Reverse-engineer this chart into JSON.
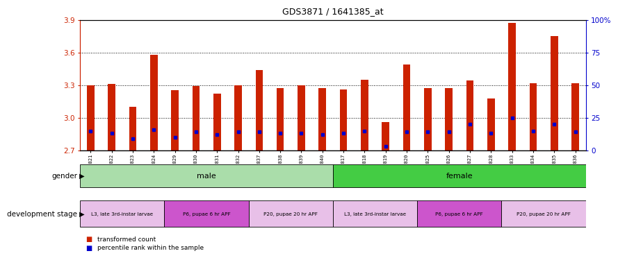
{
  "title": "GDS3871 / 1641385_at",
  "samples": [
    "GSM572821",
    "GSM572822",
    "GSM572823",
    "GSM572824",
    "GSM572829",
    "GSM572830",
    "GSM572831",
    "GSM572832",
    "GSM572837",
    "GSM572838",
    "GSM572839",
    "GSM572840",
    "GSM572817",
    "GSM572818",
    "GSM572819",
    "GSM572820",
    "GSM572825",
    "GSM572826",
    "GSM572827",
    "GSM572828",
    "GSM572833",
    "GSM572834",
    "GSM572835",
    "GSM572836"
  ],
  "transformed_count": [
    3.3,
    3.31,
    3.1,
    3.58,
    3.255,
    3.29,
    3.22,
    3.3,
    3.44,
    3.27,
    3.3,
    3.27,
    3.26,
    3.35,
    2.96,
    3.49,
    3.27,
    3.27,
    3.34,
    3.18,
    3.87,
    3.32,
    3.75,
    3.32
  ],
  "percentile_rank": [
    15,
    13,
    9,
    16,
    10,
    14,
    12,
    14,
    14,
    13,
    13,
    12,
    13,
    15,
    3,
    14,
    14,
    14,
    20,
    13,
    25,
    15,
    20,
    14
  ],
  "y_min": 2.7,
  "y_max": 3.9,
  "bar_color": "#cc2200",
  "blue_color": "#0000cc",
  "yticks_left": [
    2.7,
    3.0,
    3.3,
    3.6,
    3.9
  ],
  "yticks_right": [
    0,
    25,
    50,
    75,
    100
  ],
  "left_axis_color": "#cc2200",
  "right_axis_color": "#0000cc",
  "gender_groups": [
    {
      "label": "male",
      "start": 0,
      "end": 11,
      "color": "#aaddaa"
    },
    {
      "label": "female",
      "start": 12,
      "end": 23,
      "color": "#44cc44"
    }
  ],
  "dev_stage_groups": [
    {
      "label": "L3, late 3rd-instar larvae",
      "start": 0,
      "end": 3,
      "color": "#e8c0e8"
    },
    {
      "label": "P6, pupae 6 hr APF",
      "start": 4,
      "end": 7,
      "color": "#cc55cc"
    },
    {
      "label": "P20, pupae 20 hr APF",
      "start": 8,
      "end": 11,
      "color": "#e8c0e8"
    },
    {
      "label": "L3, late 3rd-instar larvae",
      "start": 12,
      "end": 15,
      "color": "#e8c0e8"
    },
    {
      "label": "P6, pupae 6 hr APF",
      "start": 16,
      "end": 19,
      "color": "#cc55cc"
    },
    {
      "label": "P20, pupae 20 hr APF",
      "start": 20,
      "end": 23,
      "color": "#e8c0e8"
    }
  ]
}
